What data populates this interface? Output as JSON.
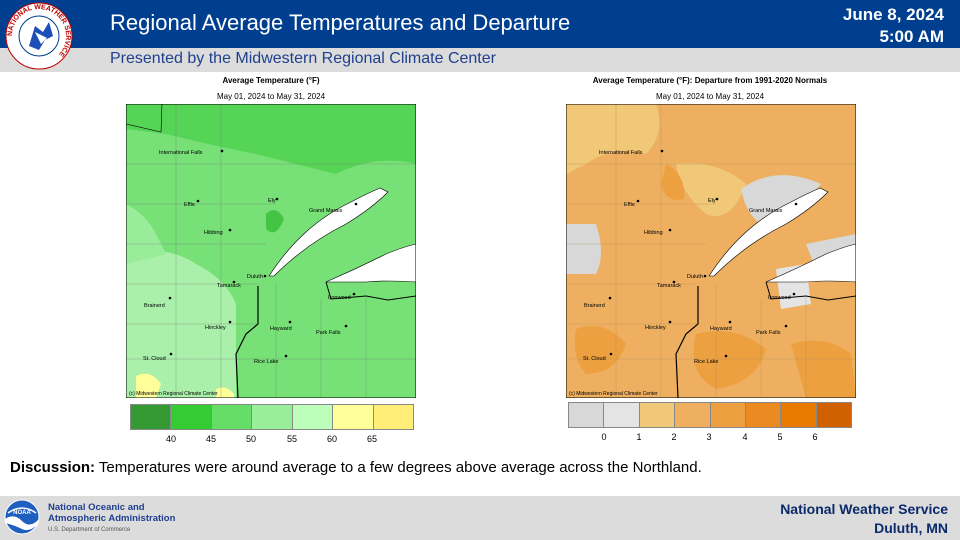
{
  "header": {
    "title": "Regional Average Temperatures and Departure",
    "date": "June 8, 2024",
    "time": "5:00 AM",
    "presented_by": "Presented by the Midwestern Regional Climate Center",
    "logo_text": "NATIONAL WEATHER SERVICE"
  },
  "left_map": {
    "title": "Average Temperature (°F)",
    "period": "May 01, 2024 to May 31, 2024",
    "credit": "(c) Midwestern Regional Climate Center",
    "legend_colors": [
      "#339933",
      "#33cc33",
      "#66dd66",
      "#99ee99",
      "#bbffbb",
      "#ffff99",
      "#ffee77"
    ],
    "legend_ticks": [
      "40",
      "45",
      "50",
      "55",
      "60",
      "65"
    ]
  },
  "right_map": {
    "title": "Average Temperature (°F): Departure from 1991-2020 Normals",
    "period": "May 01, 2024 to May 31, 2024",
    "credit": "(c) Midwestern Regional Climate Center",
    "legend_colors": [
      "#d8d8d8",
      "#e4e4e4",
      "#f0c878",
      "#eeb060",
      "#eca040",
      "#ea8a20",
      "#e87a00",
      "#d06000"
    ],
    "legend_ticks": [
      "0",
      "1",
      "2",
      "3",
      "4",
      "5",
      "6"
    ]
  },
  "cities": [
    "International Falls",
    "Effie",
    "Ely",
    "Grand Marais",
    "Hibbing",
    "Duluth",
    "Tamarack",
    "Brainerd",
    "Ironwood",
    "Hinckley",
    "Hayward",
    "Park Falls",
    "St. Cloud",
    "Rice Lake"
  ],
  "discussion": {
    "label": "Discussion:",
    "text": " Temperatures were around average to a few degrees above average across the Northland."
  },
  "footer": {
    "noaa_line1": "National Oceanic and",
    "noaa_line2": "Atmospheric Administration",
    "noaa_dept": "U.S. Department of Commerce",
    "noaa_logo_text": "NOAA",
    "nws_line1": "National  Weather  Service",
    "nws_line2": "Duluth,  MN"
  }
}
